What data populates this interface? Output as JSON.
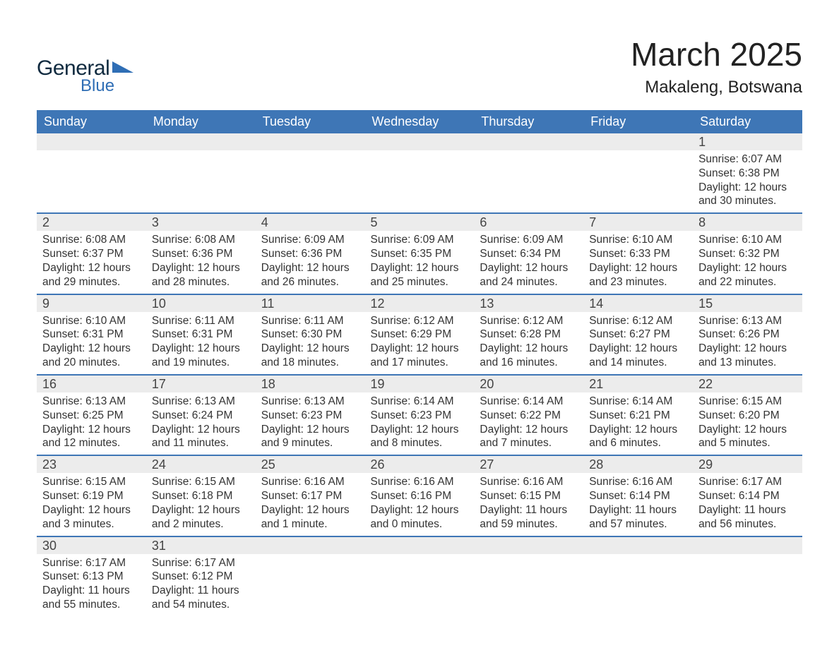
{
  "logo": {
    "text1": "General",
    "text2": "Blue",
    "tri_color": "#2f6eb5"
  },
  "header": {
    "month": "March 2025",
    "location": "Makaleng, Botswana"
  },
  "calendar": {
    "type": "table",
    "background_color": "#ffffff",
    "header_bg": "#3e76b6",
    "header_text_color": "#ffffff",
    "row_divider_color": "#3e76b6",
    "daynum_bg": "#ececec",
    "body_fontsize": 15.5,
    "header_fontsize": 18,
    "columns": [
      "Sunday",
      "Monday",
      "Tuesday",
      "Wednesday",
      "Thursday",
      "Friday",
      "Saturday"
    ],
    "weeks": [
      [
        null,
        null,
        null,
        null,
        null,
        null,
        {
          "n": "1",
          "sunrise": "Sunrise: 6:07 AM",
          "sunset": "Sunset: 6:38 PM",
          "dl1": "Daylight: 12 hours",
          "dl2": "and 30 minutes."
        }
      ],
      [
        {
          "n": "2",
          "sunrise": "Sunrise: 6:08 AM",
          "sunset": "Sunset: 6:37 PM",
          "dl1": "Daylight: 12 hours",
          "dl2": "and 29 minutes."
        },
        {
          "n": "3",
          "sunrise": "Sunrise: 6:08 AM",
          "sunset": "Sunset: 6:36 PM",
          "dl1": "Daylight: 12 hours",
          "dl2": "and 28 minutes."
        },
        {
          "n": "4",
          "sunrise": "Sunrise: 6:09 AM",
          "sunset": "Sunset: 6:36 PM",
          "dl1": "Daylight: 12 hours",
          "dl2": "and 26 minutes."
        },
        {
          "n": "5",
          "sunrise": "Sunrise: 6:09 AM",
          "sunset": "Sunset: 6:35 PM",
          "dl1": "Daylight: 12 hours",
          "dl2": "and 25 minutes."
        },
        {
          "n": "6",
          "sunrise": "Sunrise: 6:09 AM",
          "sunset": "Sunset: 6:34 PM",
          "dl1": "Daylight: 12 hours",
          "dl2": "and 24 minutes."
        },
        {
          "n": "7",
          "sunrise": "Sunrise: 6:10 AM",
          "sunset": "Sunset: 6:33 PM",
          "dl1": "Daylight: 12 hours",
          "dl2": "and 23 minutes."
        },
        {
          "n": "8",
          "sunrise": "Sunrise: 6:10 AM",
          "sunset": "Sunset: 6:32 PM",
          "dl1": "Daylight: 12 hours",
          "dl2": "and 22 minutes."
        }
      ],
      [
        {
          "n": "9",
          "sunrise": "Sunrise: 6:10 AM",
          "sunset": "Sunset: 6:31 PM",
          "dl1": "Daylight: 12 hours",
          "dl2": "and 20 minutes."
        },
        {
          "n": "10",
          "sunrise": "Sunrise: 6:11 AM",
          "sunset": "Sunset: 6:31 PM",
          "dl1": "Daylight: 12 hours",
          "dl2": "and 19 minutes."
        },
        {
          "n": "11",
          "sunrise": "Sunrise: 6:11 AM",
          "sunset": "Sunset: 6:30 PM",
          "dl1": "Daylight: 12 hours",
          "dl2": "and 18 minutes."
        },
        {
          "n": "12",
          "sunrise": "Sunrise: 6:12 AM",
          "sunset": "Sunset: 6:29 PM",
          "dl1": "Daylight: 12 hours",
          "dl2": "and 17 minutes."
        },
        {
          "n": "13",
          "sunrise": "Sunrise: 6:12 AM",
          "sunset": "Sunset: 6:28 PM",
          "dl1": "Daylight: 12 hours",
          "dl2": "and 16 minutes."
        },
        {
          "n": "14",
          "sunrise": "Sunrise: 6:12 AM",
          "sunset": "Sunset: 6:27 PM",
          "dl1": "Daylight: 12 hours",
          "dl2": "and 14 minutes."
        },
        {
          "n": "15",
          "sunrise": "Sunrise: 6:13 AM",
          "sunset": "Sunset: 6:26 PM",
          "dl1": "Daylight: 12 hours",
          "dl2": "and 13 minutes."
        }
      ],
      [
        {
          "n": "16",
          "sunrise": "Sunrise: 6:13 AM",
          "sunset": "Sunset: 6:25 PM",
          "dl1": "Daylight: 12 hours",
          "dl2": "and 12 minutes."
        },
        {
          "n": "17",
          "sunrise": "Sunrise: 6:13 AM",
          "sunset": "Sunset: 6:24 PM",
          "dl1": "Daylight: 12 hours",
          "dl2": "and 11 minutes."
        },
        {
          "n": "18",
          "sunrise": "Sunrise: 6:13 AM",
          "sunset": "Sunset: 6:23 PM",
          "dl1": "Daylight: 12 hours",
          "dl2": "and 9 minutes."
        },
        {
          "n": "19",
          "sunrise": "Sunrise: 6:14 AM",
          "sunset": "Sunset: 6:23 PM",
          "dl1": "Daylight: 12 hours",
          "dl2": "and 8 minutes."
        },
        {
          "n": "20",
          "sunrise": "Sunrise: 6:14 AM",
          "sunset": "Sunset: 6:22 PM",
          "dl1": "Daylight: 12 hours",
          "dl2": "and 7 minutes."
        },
        {
          "n": "21",
          "sunrise": "Sunrise: 6:14 AM",
          "sunset": "Sunset: 6:21 PM",
          "dl1": "Daylight: 12 hours",
          "dl2": "and 6 minutes."
        },
        {
          "n": "22",
          "sunrise": "Sunrise: 6:15 AM",
          "sunset": "Sunset: 6:20 PM",
          "dl1": "Daylight: 12 hours",
          "dl2": "and 5 minutes."
        }
      ],
      [
        {
          "n": "23",
          "sunrise": "Sunrise: 6:15 AM",
          "sunset": "Sunset: 6:19 PM",
          "dl1": "Daylight: 12 hours",
          "dl2": "and 3 minutes."
        },
        {
          "n": "24",
          "sunrise": "Sunrise: 6:15 AM",
          "sunset": "Sunset: 6:18 PM",
          "dl1": "Daylight: 12 hours",
          "dl2": "and 2 minutes."
        },
        {
          "n": "25",
          "sunrise": "Sunrise: 6:16 AM",
          "sunset": "Sunset: 6:17 PM",
          "dl1": "Daylight: 12 hours",
          "dl2": "and 1 minute."
        },
        {
          "n": "26",
          "sunrise": "Sunrise: 6:16 AM",
          "sunset": "Sunset: 6:16 PM",
          "dl1": "Daylight: 12 hours",
          "dl2": "and 0 minutes."
        },
        {
          "n": "27",
          "sunrise": "Sunrise: 6:16 AM",
          "sunset": "Sunset: 6:15 PM",
          "dl1": "Daylight: 11 hours",
          "dl2": "and 59 minutes."
        },
        {
          "n": "28",
          "sunrise": "Sunrise: 6:16 AM",
          "sunset": "Sunset: 6:14 PM",
          "dl1": "Daylight: 11 hours",
          "dl2": "and 57 minutes."
        },
        {
          "n": "29",
          "sunrise": "Sunrise: 6:17 AM",
          "sunset": "Sunset: 6:14 PM",
          "dl1": "Daylight: 11 hours",
          "dl2": "and 56 minutes."
        }
      ],
      [
        {
          "n": "30",
          "sunrise": "Sunrise: 6:17 AM",
          "sunset": "Sunset: 6:13 PM",
          "dl1": "Daylight: 11 hours",
          "dl2": "and 55 minutes."
        },
        {
          "n": "31",
          "sunrise": "Sunrise: 6:17 AM",
          "sunset": "Sunset: 6:12 PM",
          "dl1": "Daylight: 11 hours",
          "dl2": "and 54 minutes."
        },
        null,
        null,
        null,
        null,
        null
      ]
    ]
  }
}
